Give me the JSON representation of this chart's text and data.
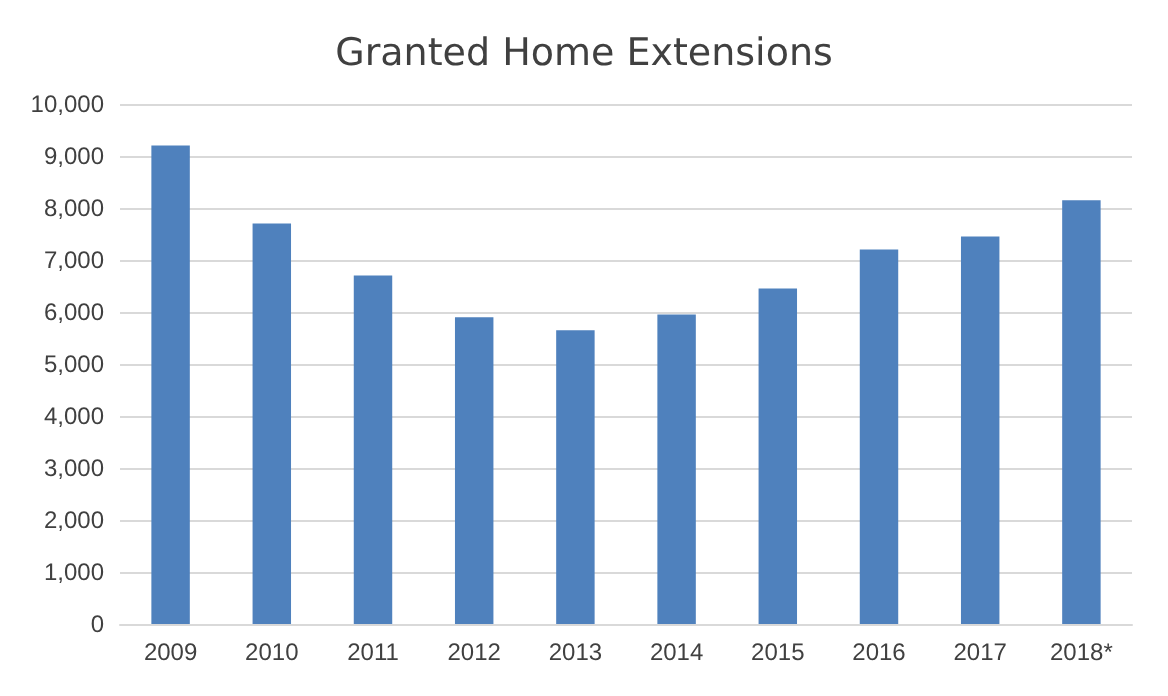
{
  "chart_data": {
    "type": "bar",
    "title": "Granted Home Extensions",
    "categories": [
      "2009",
      "2010",
      "2011",
      "2012",
      "2013",
      "2014",
      "2015",
      "2016",
      "2017",
      "2018*"
    ],
    "values": [
      9200,
      7700,
      6700,
      5900,
      5650,
      5950,
      6450,
      7200,
      7450,
      8150
    ],
    "color": "#4f81bd",
    "ylim": [
      0,
      10000
    ],
    "yticks": [
      0,
      {
        "value": 1000,
        "label": "1,000"
      },
      {
        "value": 2000,
        "label": "2,000"
      },
      {
        "value": 3000,
        "label": "3,000"
      },
      {
        "value": 4000,
        "label": "4,000"
      },
      {
        "value": 5000,
        "label": "5,000"
      },
      {
        "value": 6000,
        "label": "6,000"
      },
      {
        "value": 7000,
        "label": "7,000"
      },
      {
        "value": 8000,
        "label": "8,000"
      },
      {
        "value": 9000,
        "label": "9,000"
      },
      {
        "value": 10000,
        "label": "10,000"
      }
    ],
    "grid": "y"
  }
}
